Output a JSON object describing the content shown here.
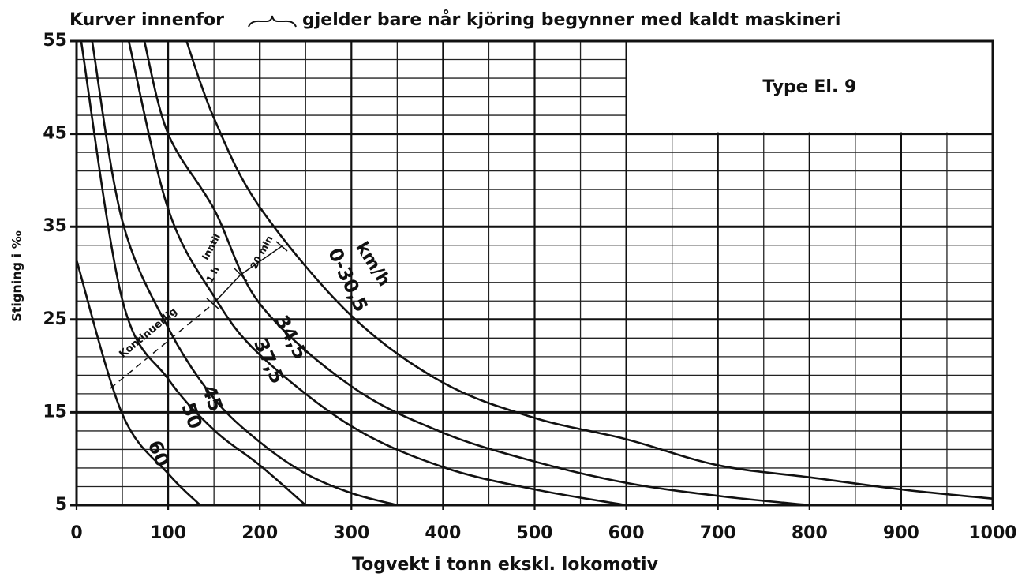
{
  "chart_data": {
    "type": "line",
    "title": [
      "Kurver innenfor",
      "gjelder bare når kjöring begynner med kaldt maskineri"
    ],
    "xlabel": "Togvekt i tonn  ekskl. lokomotiv",
    "ylabel": "Stigning i ‰",
    "box_label": "Type El. 9",
    "unit_label": "km/h",
    "annotations": [
      "Kontinuerlig",
      "Inntil",
      "1 h",
      "20 min"
    ],
    "xlim": [
      0,
      1000
    ],
    "ylim": [
      5,
      55
    ],
    "xticks": [
      0,
      100,
      200,
      300,
      400,
      500,
      600,
      700,
      800,
      900,
      1000
    ],
    "yticks": [
      5,
      15,
      25,
      35,
      45,
      55
    ],
    "x_minor_ticks": [
      50,
      150,
      250,
      350,
      450,
      550,
      650,
      750,
      850,
      950
    ],
    "y_minor_ticks": [
      7,
      9,
      11,
      13,
      17,
      19,
      21,
      23,
      27,
      29,
      31,
      33,
      37,
      39,
      41,
      43,
      47,
      49,
      51,
      53
    ],
    "grid": true,
    "series": [
      {
        "name": "0-30,5",
        "color": "#111111",
        "x": [
          120,
          150,
          200,
          300,
          400,
          500,
          600,
          700,
          800,
          900,
          1000
        ],
        "values": [
          55,
          46.7,
          37.1,
          25.4,
          18.2,
          14.4,
          12.1,
          9.3,
          8,
          6.7,
          5.7
        ]
      },
      {
        "name": "34,5",
        "color": "#111111",
        "x": [
          74,
          100,
          150,
          200,
          300,
          400,
          500,
          600,
          700,
          800
        ],
        "values": [
          55,
          45,
          36.9,
          26.7,
          17.8,
          12.8,
          9.7,
          7.4,
          6,
          5
        ]
      },
      {
        "name": "37,5",
        "color": "#111111",
        "x": [
          57,
          100,
          150,
          200,
          300,
          400,
          500,
          600
        ],
        "values": [
          55,
          36.9,
          27.5,
          21.2,
          13.5,
          9.1,
          6.7,
          5
        ]
      },
      {
        "name": "45",
        "color": "#111111",
        "x": [
          17,
          50,
          100,
          150,
          200,
          250,
          300,
          350
        ],
        "values": [
          55,
          35.6,
          24.1,
          16.5,
          11.8,
          8.4,
          6.3,
          5
        ]
      },
      {
        "name": "50",
        "color": "#111111",
        "x": [
          5,
          50,
          100,
          150,
          200,
          250
        ],
        "values": [
          55,
          27.1,
          18.6,
          13.1,
          9.3,
          5
        ]
      },
      {
        "name": "60",
        "color": "#111111",
        "x": [
          0,
          50,
          100,
          135
        ],
        "values": [
          31.4,
          14.8,
          8.4,
          5
        ]
      }
    ]
  }
}
